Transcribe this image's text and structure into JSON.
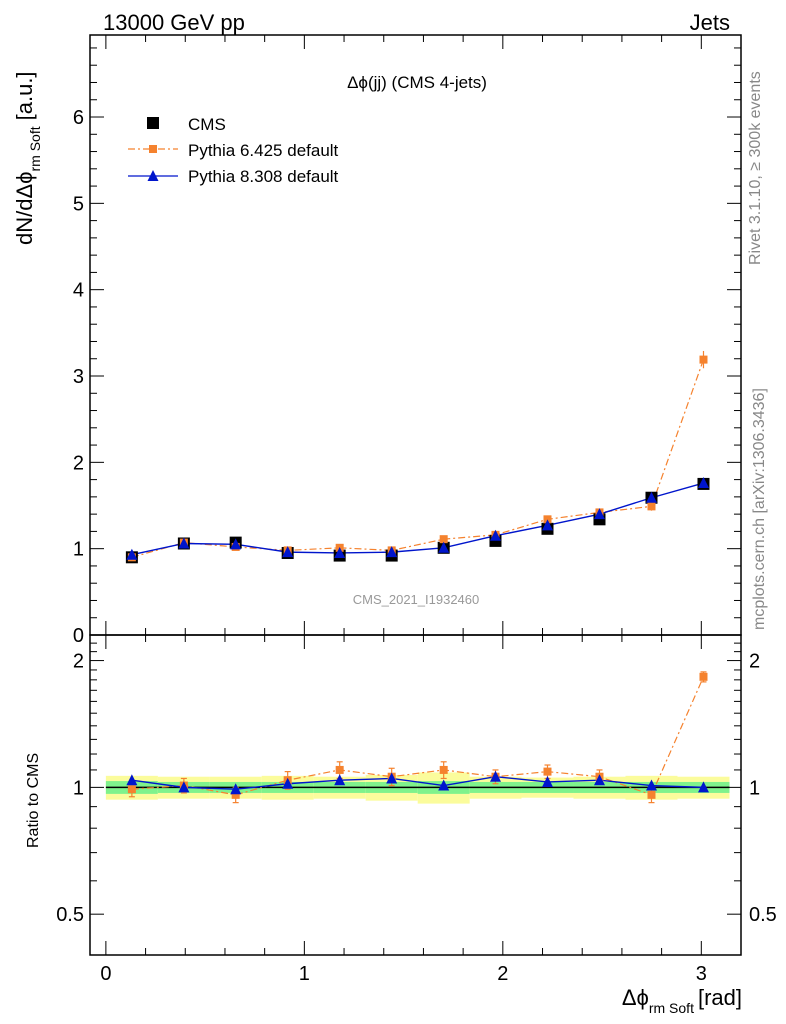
{
  "header": {
    "energy_label": "13000 GeV pp",
    "category_label": "Jets"
  },
  "side_labels": {
    "rivet": "Rivet 3.1.10, ≥ 300k events",
    "mcplots": "mcplots.cern.ch [arXiv:1306.3436]"
  },
  "colors": {
    "cms": "#000000",
    "pythia6": "#f5822e",
    "pythia8": "#0015cc",
    "band_inner": "#7ff28c",
    "band_outer": "#fbfc9c"
  },
  "chart_data": [
    {
      "type": "line",
      "title": "Δϕ(jj) (CMS 4-jets)",
      "watermark": "CMS_2021_I1932460",
      "ylabel": "dN/dΔϕ",
      "ylabel_sub": "rm Soft",
      "ylabel_unit": "[a.u.]",
      "xlim": [
        -0.08,
        3.2
      ],
      "ylim": [
        0,
        6.95
      ],
      "yticks": [
        0,
        1,
        2,
        3,
        4,
        5,
        6
      ],
      "grid": false,
      "legend_position": "top-left",
      "x": [
        0.131,
        0.393,
        0.654,
        0.916,
        1.178,
        1.44,
        1.702,
        1.963,
        2.225,
        2.487,
        2.749,
        3.011
      ],
      "series": [
        {
          "name": "CMS",
          "marker": "square",
          "values": [
            0.9,
            1.06,
            1.07,
            0.95,
            0.92,
            0.92,
            1.01,
            1.09,
            1.23,
            1.34,
            1.59,
            1.75
          ]
        },
        {
          "name": "Pythia 6.425 default",
          "marker": "square-small",
          "style": "dash-dot",
          "values": [
            0.9,
            1.07,
            1.02,
            0.98,
            1.01,
            0.98,
            1.11,
            1.16,
            1.34,
            1.42,
            1.49,
            3.19
          ],
          "errors": [
            0.03,
            0.03,
            0.03,
            0.03,
            0.03,
            0.03,
            0.03,
            0.03,
            0.03,
            0.04,
            0.05,
            0.1
          ]
        },
        {
          "name": "Pythia 8.308 default",
          "marker": "triangle",
          "style": "solid",
          "values": [
            0.93,
            1.06,
            1.05,
            0.96,
            0.95,
            0.96,
            1.01,
            1.15,
            1.27,
            1.4,
            1.59,
            1.76
          ]
        }
      ]
    },
    {
      "type": "line",
      "ylabel": "Ratio to CMS",
      "xlabel": "Δϕ",
      "xlabel_sub": "rm Soft",
      "xlabel_unit": "[rad]",
      "xlim": [
        -0.08,
        3.2
      ],
      "ylim": [
        0.4,
        2.3
      ],
      "yticks": [
        0.5,
        1,
        2
      ],
      "xticks": [
        0,
        1,
        2,
        3
      ],
      "log_y": true,
      "x": [
        0.131,
        0.393,
        0.654,
        0.916,
        1.178,
        1.44,
        1.702,
        1.963,
        2.225,
        2.487,
        2.749,
        3.011
      ],
      "bin_edges": [
        0,
        0.262,
        0.524,
        0.785,
        1.047,
        1.309,
        1.571,
        1.833,
        2.094,
        2.356,
        2.618,
        2.88,
        3.142
      ],
      "band_inner": [
        0.035,
        0.03,
        0.03,
        0.03,
        0.03,
        0.03,
        0.035,
        0.03,
        0.03,
        0.03,
        0.03,
        0.03
      ],
      "band_outer": [
        0.065,
        0.06,
        0.06,
        0.065,
        0.06,
        0.07,
        0.085,
        0.06,
        0.055,
        0.06,
        0.065,
        0.06
      ],
      "series": [
        {
          "name": "Pythia 6.425 default",
          "values": [
            0.99,
            1.01,
            0.96,
            1.04,
            1.1,
            1.06,
            1.1,
            1.06,
            1.09,
            1.06,
            0.96,
            1.83
          ],
          "errors": [
            0.04,
            0.04,
            0.04,
            0.05,
            0.05,
            0.05,
            0.05,
            0.04,
            0.04,
            0.04,
            0.04,
            0.05
          ]
        },
        {
          "name": "Pythia 8.308 default",
          "values": [
            1.04,
            1.0,
            0.99,
            1.02,
            1.04,
            1.05,
            1.01,
            1.06,
            1.03,
            1.04,
            1.01,
            1.0
          ]
        }
      ]
    }
  ]
}
